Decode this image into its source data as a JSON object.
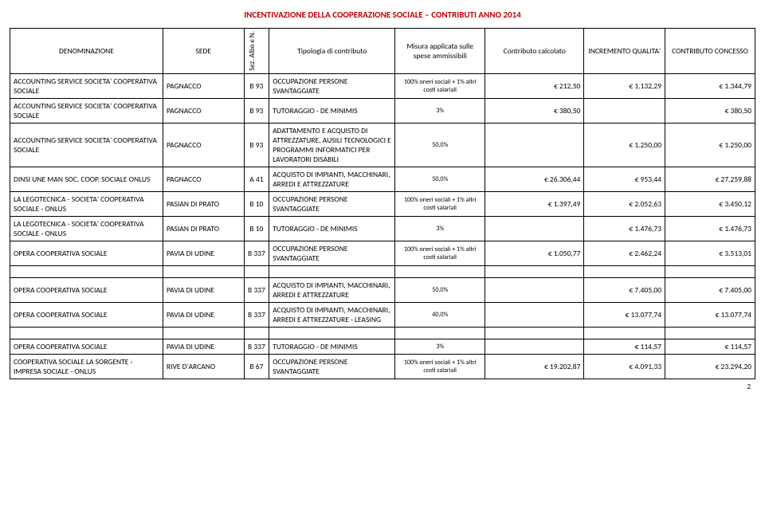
{
  "title": "INCENTIVAZIONE DELLA COOPERAZIONE SOCIALE – CONTRIBUTI ANNO 2014",
  "headers": {
    "denom": "DENOMINAZIONE",
    "sede": "SEDE",
    "sez": "Sez. Albo e N.",
    "tipologia": "Tipologia di contributo",
    "misura": "Misura applicata sulle spese ammissibili",
    "contributo_calc": "Contributo calcolato",
    "incremento": "INCREMENTO QUALITA'",
    "concesso": "CONTRIBUTO CONCESSO"
  },
  "rows": [
    {
      "denom": "ACCOUNTING SERVICE SOCIETA' COOPERATIVA SOCIALE",
      "sede": "PAGNACCO",
      "sez": "B 93",
      "tip": "OCCUPAZIONE PERSONE SVANTAGGIATE",
      "mis": "100% oneri sociali + 1% altri costi salariali",
      "cc": "€ 212,50",
      "inc": "€ 1.132,29",
      "con": "€ 1.344,79"
    },
    {
      "denom": "ACCOUNTING SERVICE SOCIETA' COOPERATIVA SOCIALE",
      "sede": "PAGNACCO",
      "sez": "B 93",
      "tip": "TUTORAGGIO - DE MINIMIS",
      "mis": "3%",
      "cc": "€ 380,50",
      "inc": "",
      "con": "€ 380,50"
    },
    {
      "denom": "ACCOUNTING SERVICE SOCIETA' COOPERATIVA SOCIALE",
      "sede": "PAGNACCO",
      "sez": "B 93",
      "tip": "ADATTAMENTO E ACQUISTO DI ATTREZZATURE, AUSILI TECNOLOGICI E PROGRAMMI INFORMATICI PER LAVORATORI DISABILI",
      "mis": "50,0%",
      "cc": "",
      "inc": "€ 1.250,00",
      "con": "€ 1.250,00"
    },
    {
      "denom": "DINSI UNE MAN SOC. COOP. SOCIALE ONLUS",
      "sede": "PAGNACCO",
      "sez": "A 41",
      "tip": "ACQUISTO DI IMPIANTI, MACCHINARI, ARREDI E ATTREZZATURE",
      "mis": "50,0%",
      "cc": "€ 26.306,44",
      "inc": "€ 953,44",
      "con": "€ 27.259,88"
    },
    {
      "denom": "LA LEGOTECNICA - SOCIETA' COOPERATIVA SOCIALE - ONLUS",
      "sede": "PASIAN DI PRATO",
      "sez": "B 10",
      "tip": "OCCUPAZIONE PERSONE SVANTAGGIATE",
      "mis": "100% oneri sociali + 1% altri costi salariali",
      "cc": "",
      "inc": "€ 1.397,49",
      "con_pre": "€ 2.052,63",
      "con": "€ 3.450,12"
    },
    {
      "denom": "LA LEGOTECNICA - SOCIETA' COOPERATIVA SOCIALE - ONLUS",
      "sede": "PASIAN DI PRATO",
      "sez": "B 10",
      "tip": "TUTORAGGIO - DE MINIMIS",
      "mis": "3%",
      "cc": "",
      "inc": "€ 1.476,73",
      "con": "€ 1.476,73"
    },
    {
      "denom": "OPERA COOPERATIVA SOCIALE",
      "sede": "PAVIA DI UDINE",
      "sez": "B 337",
      "tip": "OCCUPAZIONE PERSONE SVANTAGGIATE",
      "mis": "100% oneri sociali + 1% altri costi salariali",
      "cc": "",
      "inc": "€ 1.050,77",
      "con_pre": "€ 2.462,24",
      "con": "€ 3.513,01"
    }
  ],
  "block2": [
    {
      "denom": "OPERA COOPERATIVA SOCIALE",
      "sede": "PAVIA DI UDINE",
      "sez": "B 337",
      "tip": "ACQUISTO DI IMPIANTI, MACCHINARI, ARREDI E ATTREZZATURE",
      "mis": "50,0%",
      "cc": "",
      "inc": "€ 7.405,00",
      "con": "€ 7.405,00"
    },
    {
      "denom": "OPERA COOPERATIVA SOCIALE",
      "sede": "PAVIA DI UDINE",
      "sez": "B 337",
      "tip": "ACQUISTO DI IMPIANTI, MACCHINARI, ARREDI E ATTREZZATURE - LEASING",
      "mis": "40,0%",
      "cc": "",
      "inc": "€ 13.077,74",
      "con": "€ 13.077,74"
    }
  ],
  "block3": [
    {
      "denom": "OPERA COOPERATIVA SOCIALE",
      "sede": "PAVIA DI UDINE",
      "sez": "B 337",
      "tip": "TUTORAGGIO - DE MINIMIS",
      "mis": "3%",
      "cc": "",
      "inc": "€ 114,57",
      "con": "€ 114,57"
    },
    {
      "denom": "COOPERATIVA SOCIALE LA SORGENTE - IMPRESA SOCIALE - ONLUS",
      "sede": "RIVE D'ARCANO",
      "sez": "B 67",
      "tip": "OCCUPAZIONE PERSONE SVANTAGGIATE",
      "mis": "100% oneri sociali + 1% altri costi salariali",
      "cc": "",
      "inc": "€ 19.202,87",
      "con_pre": "€ 4.091,33",
      "con": "€ 23.294,20"
    }
  ],
  "pagenum": "2"
}
